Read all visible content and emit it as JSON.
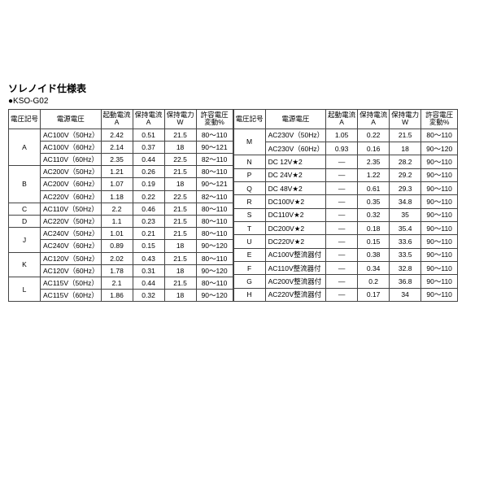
{
  "title": "ソレノイド仕様表",
  "subtitle": "●KSO-G02",
  "headers": {
    "code": "電圧記号",
    "voltage": "電源電圧",
    "start_current": "起動電流",
    "start_current_unit": "A",
    "hold_current": "保持電流",
    "hold_current_unit": "A",
    "hold_power": "保持電力",
    "hold_power_unit": "W",
    "tolerance": "許容電圧",
    "tolerance_unit": "変動%"
  },
  "left": [
    {
      "code": "A",
      "rows": [
        {
          "v": "AC100V（50Hz）",
          "s": "2.42",
          "h": "0.51",
          "w": "21.5",
          "t": "80～110"
        },
        {
          "v": "AC100V（60Hz）",
          "s": "2.14",
          "h": "0.37",
          "w": "18",
          "t": "90～121"
        },
        {
          "v": "AC110V（60Hz）",
          "s": "2.35",
          "h": "0.44",
          "w": "22.5",
          "t": "82～110"
        }
      ]
    },
    {
      "code": "B",
      "rows": [
        {
          "v": "AC200V（50Hz）",
          "s": "1.21",
          "h": "0.26",
          "w": "21.5",
          "t": "80～110"
        },
        {
          "v": "AC200V（60Hz）",
          "s": "1.07",
          "h": "0.19",
          "w": "18",
          "t": "90～121"
        },
        {
          "v": "AC220V（60Hz）",
          "s": "1.18",
          "h": "0.22",
          "w": "22.5",
          "t": "82～110"
        }
      ]
    },
    {
      "code": "C",
      "rows": [
        {
          "v": "AC110V（50Hz）",
          "s": "2.2",
          "h": "0.46",
          "w": "21.5",
          "t": "80～110"
        }
      ]
    },
    {
      "code": "D",
      "rows": [
        {
          "v": "AC220V（50Hz）",
          "s": "1.1",
          "h": "0.23",
          "w": "21.5",
          "t": "80～110"
        }
      ]
    },
    {
      "code": "J",
      "rows": [
        {
          "v": "AC240V（50Hz）",
          "s": "1.01",
          "h": "0.21",
          "w": "21.5",
          "t": "80～110"
        },
        {
          "v": "AC240V（60Hz）",
          "s": "0.89",
          "h": "0.15",
          "w": "18",
          "t": "90～120"
        }
      ]
    },
    {
      "code": "K",
      "rows": [
        {
          "v": "AC120V（50Hz）",
          "s": "2.02",
          "h": "0.43",
          "w": "21.5",
          "t": "80～110"
        },
        {
          "v": "AC120V（60Hz）",
          "s": "1.78",
          "h": "0.31",
          "w": "18",
          "t": "90～120"
        }
      ]
    },
    {
      "code": "L",
      "rows": [
        {
          "v": "AC115V（50Hz）",
          "s": "2.1",
          "h": "0.44",
          "w": "21.5",
          "t": "80～110"
        },
        {
          "v": "AC115V（60Hz）",
          "s": "1.86",
          "h": "0.32",
          "w": "18",
          "t": "90～120"
        }
      ]
    }
  ],
  "right": [
    {
      "code": "M",
      "rows": [
        {
          "v": "AC230V（50Hz）",
          "s": "1.05",
          "h": "0.22",
          "w": "21.5",
          "t": "80～110"
        },
        {
          "v": "AC230V（60Hz）",
          "s": "0.93",
          "h": "0.16",
          "w": "18",
          "t": "90～120"
        }
      ]
    },
    {
      "code": "N",
      "rows": [
        {
          "v": "DC 12V★2",
          "s": "—",
          "h": "2.35",
          "w": "28.2",
          "t": "90～110"
        }
      ]
    },
    {
      "code": "P",
      "rows": [
        {
          "v": "DC 24V★2",
          "s": "—",
          "h": "1.22",
          "w": "29.2",
          "t": "90～110"
        }
      ]
    },
    {
      "code": "Q",
      "rows": [
        {
          "v": "DC 48V★2",
          "s": "—",
          "h": "0.61",
          "w": "29.3",
          "t": "90～110"
        }
      ]
    },
    {
      "code": "R",
      "rows": [
        {
          "v": "DC100V★2",
          "s": "—",
          "h": "0.35",
          "w": "34.8",
          "t": "90～110"
        }
      ]
    },
    {
      "code": "S",
      "rows": [
        {
          "v": "DC110V★2",
          "s": "—",
          "h": "0.32",
          "w": "35",
          "t": "90～110"
        }
      ]
    },
    {
      "code": "T",
      "rows": [
        {
          "v": "DC200V★2",
          "s": "—",
          "h": "0.18",
          "w": "35.4",
          "t": "90～110"
        }
      ]
    },
    {
      "code": "U",
      "rows": [
        {
          "v": "DC220V★2",
          "s": "—",
          "h": "0.15",
          "w": "33.6",
          "t": "90～110"
        }
      ]
    },
    {
      "code": "E",
      "rows": [
        {
          "v": "AC100V整流器付",
          "s": "—",
          "h": "0.38",
          "w": "33.5",
          "t": "90～110"
        }
      ]
    },
    {
      "code": "F",
      "rows": [
        {
          "v": "AC110V整流器付",
          "s": "—",
          "h": "0.34",
          "w": "32.8",
          "t": "90～110"
        }
      ]
    },
    {
      "code": "G",
      "rows": [
        {
          "v": "AC200V整流器付",
          "s": "—",
          "h": "0.2",
          "w": "36.8",
          "t": "90～110"
        }
      ]
    },
    {
      "code": "H",
      "rows": [
        {
          "v": "AC220V整流器付",
          "s": "—",
          "h": "0.17",
          "w": "34",
          "t": "90～110"
        }
      ]
    }
  ]
}
